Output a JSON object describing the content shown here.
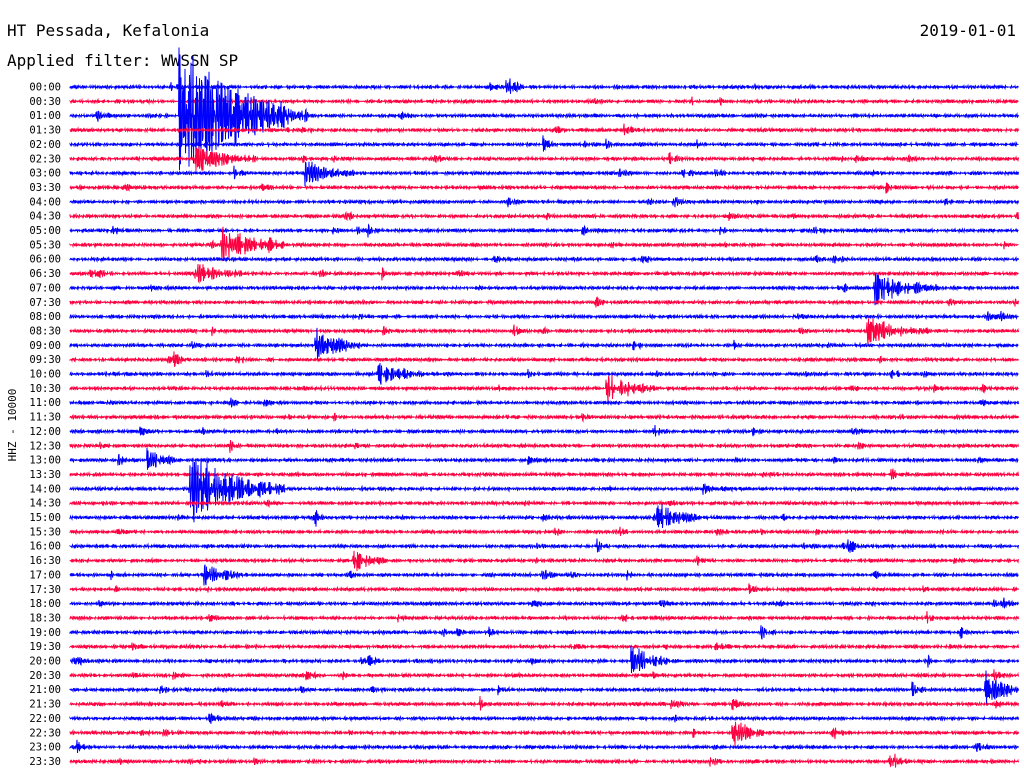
{
  "header": {
    "station": "HT Pessada, Kefalonia",
    "date": "2019-01-01",
    "filter": "Applied filter: WWSSN SP"
  },
  "chart_data": {
    "type": "line",
    "title": "HT Pessada, Kefalonia",
    "ylabel": "HHZ - 10000",
    "grid": false,
    "legend": "none",
    "row_labels": [
      "00:00",
      "00:30",
      "01:00",
      "01:30",
      "02:00",
      "02:30",
      "03:00",
      "03:30",
      "04:00",
      "04:30",
      "05:00",
      "05:30",
      "06:00",
      "06:30",
      "07:00",
      "07:30",
      "08:00",
      "08:30",
      "09:00",
      "09:30",
      "10:00",
      "10:30",
      "11:00",
      "11:30",
      "12:00",
      "12:30",
      "13:00",
      "13:30",
      "14:00",
      "14:30",
      "15:00",
      "15:30",
      "16:00",
      "16:30",
      "17:00",
      "17:30",
      "18:00",
      "18:30",
      "19:00",
      "19:30",
      "20:00",
      "20:30",
      "21:00",
      "21:30",
      "22:00",
      "22:30",
      "23:00",
      "23:30"
    ],
    "row_minutes": 30,
    "colors": [
      "#0000ff",
      "#ff0040"
    ],
    "events": [
      {
        "time": "01:00",
        "offset_min": 3.5,
        "amplitude": 10,
        "duration_min": 4
      },
      {
        "time": "02:30",
        "offset_min": 4,
        "amplitude": 1.8,
        "duration_min": 2
      },
      {
        "time": "03:00",
        "offset_min": 7.5,
        "amplitude": 1.8,
        "duration_min": 1.5
      },
      {
        "time": "05:30",
        "offset_min": 4.8,
        "amplitude": 2.5,
        "duration_min": 2
      },
      {
        "time": "06:30",
        "offset_min": 4,
        "amplitude": 1.6,
        "duration_min": 1.5
      },
      {
        "time": "07:00",
        "offset_min": 25.5,
        "amplitude": 2.2,
        "duration_min": 2
      },
      {
        "time": "08:30",
        "offset_min": 25.2,
        "amplitude": 2,
        "duration_min": 2
      },
      {
        "time": "09:00",
        "offset_min": 7.8,
        "amplitude": 2.5,
        "duration_min": 1.5
      },
      {
        "time": "10:00",
        "offset_min": 9.8,
        "amplitude": 2,
        "duration_min": 1.5
      },
      {
        "time": "10:30",
        "offset_min": 17,
        "amplitude": 2.2,
        "duration_min": 1.5
      },
      {
        "time": "13:00",
        "offset_min": 2.5,
        "amplitude": 1.5,
        "duration_min": 1
      },
      {
        "time": "14:00",
        "offset_min": 3.8,
        "amplitude": 5,
        "duration_min": 3
      },
      {
        "time": "15:00",
        "offset_min": 18.5,
        "amplitude": 2.2,
        "duration_min": 1.5
      },
      {
        "time": "16:30",
        "offset_min": 9,
        "amplitude": 1.5,
        "duration_min": 1
      },
      {
        "time": "17:00",
        "offset_min": 4.3,
        "amplitude": 1.5,
        "duration_min": 1
      },
      {
        "time": "20:00",
        "offset_min": 17.8,
        "amplitude": 2,
        "duration_min": 1.5
      },
      {
        "time": "21:00",
        "offset_min": 29,
        "amplitude": 3,
        "duration_min": 1
      },
      {
        "time": "22:30",
        "offset_min": 21,
        "amplitude": 2,
        "duration_min": 1
      }
    ]
  }
}
